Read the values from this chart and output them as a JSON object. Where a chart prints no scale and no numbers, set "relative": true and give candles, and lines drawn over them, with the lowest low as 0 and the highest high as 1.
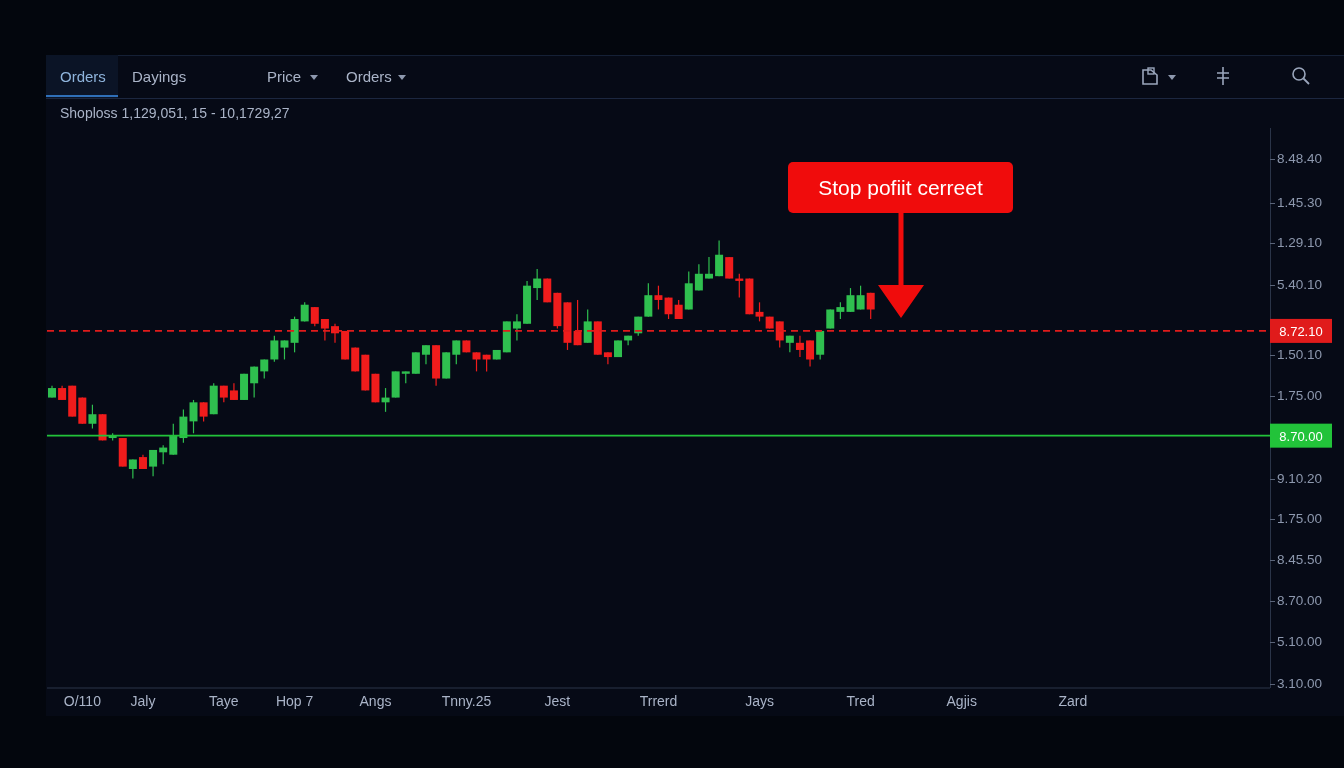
{
  "chart_data": {
    "type": "candlestick",
    "relative": true,
    "subtitle": "Shoploss 1,129,051, 15 - 10,1729,27",
    "annotations": [
      "Orders",
      "Dayings",
      "Price",
      "Orders",
      "Stop pofiit cerreet",
      "8.48.40",
      "1.45.30",
      "1.29.10",
      "5.40.10",
      "1.50.10",
      "1.75.00",
      "9.10.20",
      "1.75.00",
      "8.45.50",
      "8.70.00",
      "5.10.00",
      "3.10.00"
    ],
    "categories": [
      null,
      null,
      null,
      "O/110",
      null,
      null,
      null,
      null,
      null,
      "Jaly",
      null,
      null,
      null,
      null,
      null,
      null,
      null,
      "Taye",
      null,
      null,
      null,
      null,
      null,
      null,
      "Hop 7",
      null,
      null,
      null,
      null,
      null,
      null,
      null,
      "Angs",
      null,
      null,
      null,
      null,
      null,
      null,
      null,
      null,
      "Tnny.25",
      null,
      null,
      null,
      null,
      null,
      null,
      null,
      null,
      "Jest",
      null,
      null,
      null,
      null,
      null,
      null,
      null,
      null,
      null,
      "Trrerd",
      null,
      null,
      null,
      null,
      null,
      null,
      null,
      null,
      null,
      "Jays",
      null,
      null,
      null,
      null,
      null,
      null,
      null,
      null,
      null,
      "Tred",
      null,
      null,
      null,
      null,
      null,
      null,
      null,
      null,
      null,
      "Agjis",
      null,
      null,
      null,
      null,
      null,
      null,
      null,
      null,
      null,
      null,
      "Zard",
      null,
      null,
      null,
      null,
      null,
      null,
      null,
      null,
      null,
      null,
      null,
      null,
      null,
      null,
      null,
      null,
      null,
      null,
      null
    ],
    "ohlc": [
      [
        0.34,
        0.39,
        0.34,
        0.38
      ],
      [
        0.38,
        0.39,
        0.33,
        0.33
      ],
      [
        0.39,
        0.39,
        0.26,
        0.26
      ],
      [
        0.34,
        0.34,
        0.23,
        0.23
      ],
      [
        0.23,
        0.31,
        0.21,
        0.27
      ],
      [
        0.27,
        0.27,
        0.16,
        0.16
      ],
      [
        0.17,
        0.19,
        0.16,
        0.18
      ],
      [
        0.17,
        0.17,
        0.05,
        0.05
      ],
      [
        0.04,
        0.08,
        0,
        0.08
      ],
      [
        0.09,
        0.1,
        0.04,
        0.04
      ],
      [
        0.05,
        0.12,
        0.01,
        0.12
      ],
      [
        0.11,
        0.14,
        0.06,
        0.13
      ],
      [
        0.1,
        0.23,
        0.1,
        0.18
      ],
      [
        0.17,
        0.29,
        0.15,
        0.26
      ],
      [
        0.24,
        0.33,
        0.19,
        0.32
      ],
      [
        0.32,
        0.32,
        0.24,
        0.26
      ],
      [
        0.27,
        0.4,
        0.27,
        0.39
      ],
      [
        0.39,
        0.39,
        0.32,
        0.34
      ],
      [
        0.37,
        0.4,
        0.33,
        0.33
      ],
      [
        0.33,
        0.44,
        0.33,
        0.44
      ],
      [
        0.4,
        0.47,
        0.34,
        0.47
      ],
      [
        0.45,
        0.5,
        0.42,
        0.5
      ],
      [
        0.5,
        0.6,
        0.49,
        0.58
      ],
      [
        0.55,
        0.58,
        0.5,
        0.58
      ],
      [
        0.57,
        0.68,
        0.53,
        0.67
      ],
      [
        0.66,
        0.74,
        0.66,
        0.73
      ],
      [
        0.72,
        0.72,
        0.64,
        0.65
      ],
      [
        0.67,
        0.67,
        0.58,
        0.63
      ],
      [
        0.64,
        0.65,
        0.57,
        0.61
      ],
      [
        0.62,
        0.62,
        0.5,
        0.5
      ],
      [
        0.55,
        0.55,
        0.45,
        0.45
      ],
      [
        0.52,
        0.52,
        0.37,
        0.37
      ],
      [
        0.44,
        0.44,
        0.32,
        0.32
      ],
      [
        0.32,
        0.38,
        0.28,
        0.34
      ],
      [
        0.34,
        0.45,
        0.34,
        0.45
      ],
      [
        0.44,
        0.45,
        0.4,
        0.45
      ],
      [
        0.44,
        0.53,
        0.44,
        0.53
      ],
      [
        0.52,
        0.56,
        0.48,
        0.56
      ],
      [
        0.56,
        0.56,
        0.39,
        0.42
      ],
      [
        0.42,
        0.53,
        0.42,
        0.53
      ],
      [
        0.52,
        0.58,
        0.48,
        0.58
      ],
      [
        0.58,
        0.58,
        0.53,
        0.53
      ],
      [
        0.53,
        0.53,
        0.45,
        0.5
      ],
      [
        0.52,
        0.52,
        0.45,
        0.5
      ],
      [
        0.5,
        0.54,
        0.5,
        0.54
      ],
      [
        0.53,
        0.66,
        0.53,
        0.66
      ],
      [
        0.63,
        0.69,
        0.58,
        0.66
      ],
      [
        0.65,
        0.83,
        0.65,
        0.81
      ],
      [
        0.8,
        0.88,
        0.75,
        0.84
      ],
      [
        0.84,
        0.84,
        0.74,
        0.74
      ],
      [
        0.78,
        0.78,
        0.63,
        0.64
      ],
      [
        0.74,
        0.74,
        0.54,
        0.57
      ],
      [
        0.62,
        0.75,
        0.56,
        0.56
      ],
      [
        0.57,
        0.71,
        0.57,
        0.66
      ],
      [
        0.66,
        0.66,
        0.52,
        0.52
      ],
      [
        0.53,
        0.53,
        0.48,
        0.51
      ],
      [
        0.51,
        0.58,
        0.51,
        0.58
      ],
      [
        0.58,
        0.6,
        0.56,
        0.6
      ],
      [
        0.61,
        0.68,
        0.6,
        0.68
      ],
      [
        0.68,
        0.82,
        0.68,
        0.77
      ],
      [
        0.77,
        0.81,
        0.71,
        0.75
      ],
      [
        0.76,
        0.76,
        0.67,
        0.69
      ],
      [
        0.73,
        0.75,
        0.67,
        0.67
      ],
      [
        0.71,
        0.87,
        0.71,
        0.82
      ],
      [
        0.79,
        0.9,
        0.79,
        0.86
      ],
      [
        0.84,
        0.93,
        0.84,
        0.86
      ],
      [
        0.85,
        1.0,
        0.85,
        0.94
      ],
      [
        0.93,
        0.93,
        0.84,
        0.84
      ],
      [
        0.84,
        0.86,
        0.76,
        0.83
      ],
      [
        0.84,
        0.84,
        0.69,
        0.69
      ],
      [
        0.7,
        0.74,
        0.66,
        0.68
      ],
      [
        0.68,
        0.68,
        0.63,
        0.63
      ],
      [
        0.66,
        0.66,
        0.55,
        0.58
      ],
      [
        0.57,
        0.6,
        0.53,
        0.6
      ],
      [
        0.57,
        0.6,
        0.51,
        0.54
      ],
      [
        0.58,
        0.58,
        0.47,
        0.5
      ],
      [
        0.52,
        0.62,
        0.5,
        0.62
      ],
      [
        0.63,
        0.71,
        0.63,
        0.71
      ],
      [
        0.7,
        0.74,
        0.67,
        0.72
      ],
      [
        0.7,
        0.8,
        0.7,
        0.77
      ],
      [
        0.71,
        0.81,
        0.71,
        0.77
      ],
      [
        0.78,
        0.78,
        0.67,
        0.71
      ],
      null,
      null,
      null,
      null,
      null,
      null,
      null,
      null,
      null,
      null,
      null,
      null,
      null,
      null,
      null,
      null,
      null,
      null,
      null,
      null,
      null,
      null,
      null,
      null,
      null,
      null,
      null,
      null,
      null,
      null,
      null,
      null,
      null,
      null,
      null,
      null,
      null,
      null,
      null
    ],
    "colors": [
      "#2fbf4f",
      "#f01c1c",
      "#f01c1c",
      "#f01c1c",
      "#2fbf4f",
      "#f01c1c",
      "#2fbf4f",
      "#f01c1c",
      "#2fbf4f",
      "#f01c1c",
      "#2fbf4f",
      "#2fbf4f",
      "#2fbf4f",
      "#2fbf4f",
      "#2fbf4f",
      "#f01c1c",
      "#2fbf4f",
      "#f01c1c",
      "#f01c1c",
      "#2fbf4f",
      "#2fbf4f",
      "#2fbf4f",
      "#2fbf4f",
      "#2fbf4f",
      "#2fbf4f",
      "#2fbf4f",
      "#f01c1c",
      "#f01c1c",
      "#f01c1c",
      "#f01c1c",
      "#f01c1c",
      "#f01c1c",
      "#f01c1c",
      "#2fbf4f",
      "#2fbf4f",
      "#2fbf4f",
      "#2fbf4f",
      "#2fbf4f",
      "#f01c1c",
      "#2fbf4f",
      "#2fbf4f",
      "#f01c1c",
      "#f01c1c",
      "#f01c1c",
      "#2fbf4f",
      "#2fbf4f",
      "#2fbf4f",
      "#2fbf4f",
      "#2fbf4f",
      "#f01c1c",
      "#f01c1c",
      "#f01c1c",
      "#f01c1c",
      "#2fbf4f",
      "#f01c1c",
      "#f01c1c",
      "#2fbf4f",
      "#2fbf4f",
      "#2fbf4f",
      "#2fbf4f",
      "#f01c1c",
      "#f01c1c",
      "#f01c1c",
      "#2fbf4f",
      "#2fbf4f",
      "#2fbf4f",
      "#2fbf4f",
      "#f01c1c",
      "#f01c1c",
      "#f01c1c",
      "#f01c1c",
      "#f01c1c",
      "#f01c1c",
      "#2fbf4f",
      "#f01c1c",
      "#f01c1c",
      "#2fbf4f",
      "#2fbf4f",
      "#2fbf4f",
      "#2fbf4f",
      "#2fbf4f",
      "#f01c1c",
      null,
      null,
      null,
      null,
      null,
      null,
      null,
      null,
      null,
      null,
      null,
      null,
      null,
      null,
      null,
      null,
      null,
      null,
      null,
      null,
      null,
      null,
      null,
      null,
      null,
      null,
      null,
      null,
      null,
      null,
      null,
      null,
      null,
      null,
      null,
      null,
      null,
      null,
      null
    ],
    "ref_lines": [
      {
        "axis": "y",
        "value": 0.62,
        "label": "8.72.10",
        "color": "#e01b1b",
        "line_style": "dashed"
      },
      {
        "axis": "y",
        "value": 0.18,
        "label": "8.70.00",
        "color": "#22c33a",
        "line_style": "solid"
      }
    ]
  }
}
